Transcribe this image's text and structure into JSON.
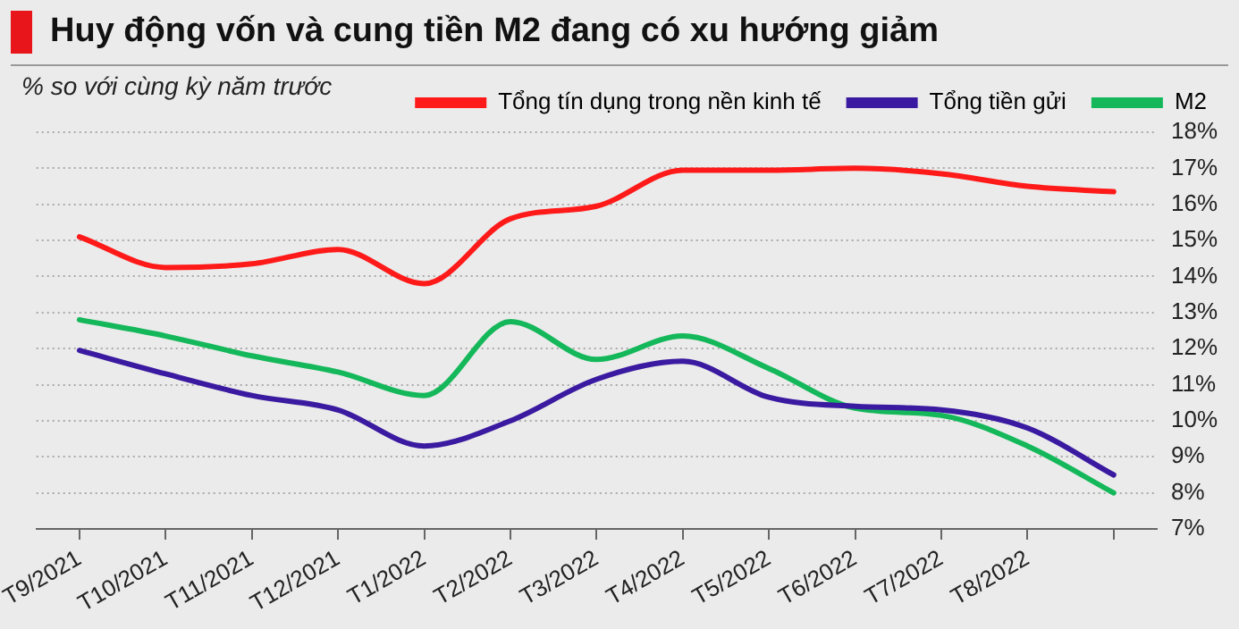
{
  "chart_data": {
    "type": "line",
    "title": "Huy động vốn và cung tiền M2 đang có xu hướng giảm",
    "ylabel": "% so với cùng kỳ năm trước",
    "categories": [
      "T9/2021",
      "T10/2021",
      "T11/2021",
      "T12/2021",
      "T1/2022",
      "T2/2022",
      "T3/2022",
      "T4/2022",
      "T5/2022",
      "T6/2022",
      "T7/2022",
      "T8/2022",
      null
    ],
    "series": [
      {
        "name": "Tổng tín dụng trong nền kinh tế",
        "color": "#ff1a1a",
        "values": [
          15.1,
          14.25,
          14.35,
          14.75,
          13.8,
          15.6,
          15.95,
          16.95,
          16.95,
          17.0,
          16.85,
          16.5,
          16.35
        ]
      },
      {
        "name": "Tổng tiền gửi",
        "color": "#3a1aa0",
        "values": [
          11.95,
          11.3,
          10.7,
          10.3,
          9.3,
          10.0,
          11.15,
          11.65,
          10.65,
          10.4,
          10.3,
          9.8,
          8.5
        ]
      },
      {
        "name": "M2",
        "color": "#14b85a",
        "values": [
          12.8,
          12.35,
          11.8,
          11.35,
          10.7,
          12.75,
          11.7,
          12.35,
          11.45,
          10.35,
          10.15,
          9.3,
          8.0
        ]
      }
    ],
    "ylim": [
      7,
      18
    ],
    "yticks": [
      {
        "value": 7,
        "label": "7%"
      },
      {
        "value": 8,
        "label": "8%"
      },
      {
        "value": 9,
        "label": "9%"
      },
      {
        "value": 10,
        "label": "10%"
      },
      {
        "value": 11,
        "label": "11%"
      },
      {
        "value": 12,
        "label": "12%"
      },
      {
        "value": 13,
        "label": "13%"
      },
      {
        "value": 14,
        "label": "14%"
      },
      {
        "value": 15,
        "label": "15%"
      },
      {
        "value": 16,
        "label": "16%"
      },
      {
        "value": 17,
        "label": "17%"
      },
      {
        "value": 18,
        "label": "18%"
      }
    ],
    "grid": "y",
    "legend": "top right",
    "marker": "none",
    "line_style": "solid"
  }
}
